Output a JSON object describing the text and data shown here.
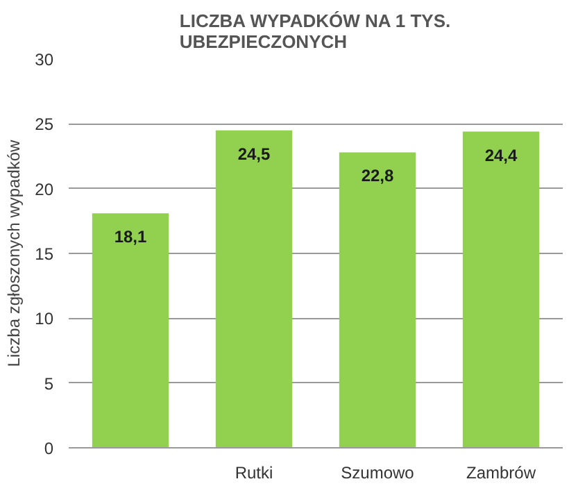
{
  "chart_data": {
    "type": "bar",
    "title": "LICZBA WYPADKÓW NA 1 TYS. UBEZPIECZONYCH",
    "ylabel": "Liczba zgłoszonych wypadków",
    "categories": [
      null,
      "Rutki",
      "Szumowo",
      "Zambrów"
    ],
    "values": [
      18.1,
      24.5,
      22.8,
      24.4
    ],
    "value_labels": [
      "18,1",
      "24,5",
      "22,8",
      "24,4"
    ],
    "color": "#92d050",
    "ylim": [
      0,
      30
    ],
    "yticks": [
      0,
      5,
      10,
      15,
      20,
      25,
      30
    ],
    "grid": "y"
  }
}
